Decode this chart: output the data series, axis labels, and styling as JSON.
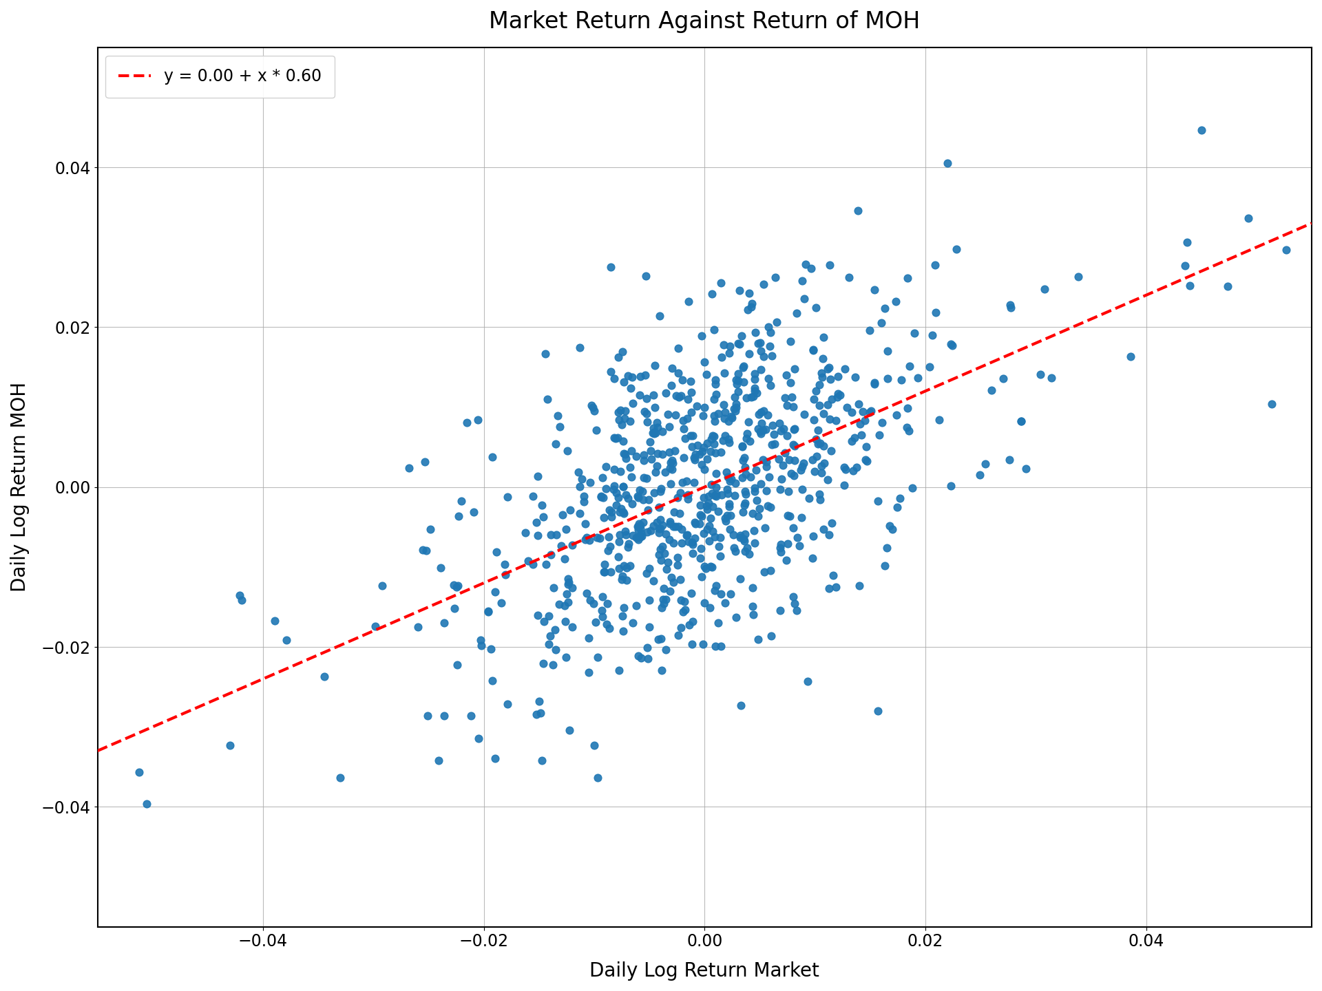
{
  "title": "Market Return Against Return of MOH",
  "xlabel": "Daily Log Return Market",
  "ylabel": "Daily Log Return MOH",
  "legend_label": "y = 0.00 + x * 0.60",
  "intercept": 0.0,
  "slope": 0.6,
  "xlim": [
    -0.055,
    0.055
  ],
  "ylim": [
    -0.055,
    0.055
  ],
  "scatter_color": "#1f77b4",
  "line_color": "red",
  "marker_size": 60,
  "seed": 12345,
  "n_points": 800,
  "background_color": "white",
  "grid_color": "#aaaaaa",
  "title_fontsize": 24,
  "label_fontsize": 20,
  "tick_fontsize": 17,
  "legend_fontsize": 17,
  "figwidth": 19.2,
  "figheight": 14.4,
  "dpi": 100
}
